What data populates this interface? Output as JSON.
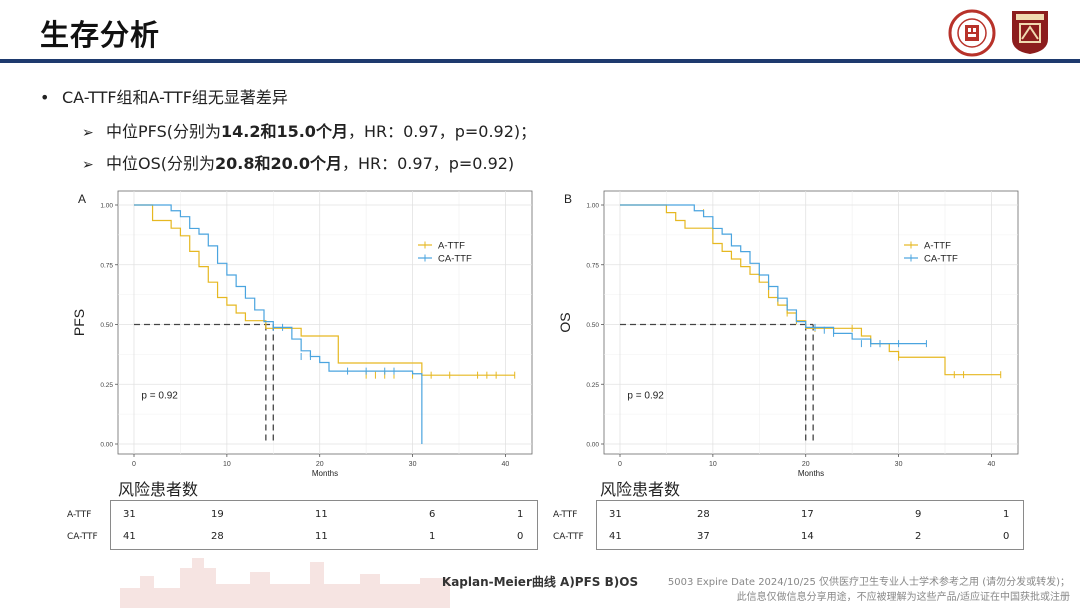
{
  "header": {
    "title": "生存分析",
    "logo_left": "fudan-university-seal",
    "logo_right": "hospital-badge",
    "rule_color": "#1e3a6e"
  },
  "bullets": {
    "main": "CA-TTF组和A-TTF组无显著差异",
    "pfs": {
      "prefix": "中位PFS(分别为",
      "bold": "14.2和15.0个月",
      "suffix": "，HR：0.97，p=0.92)；"
    },
    "os": {
      "prefix": "中位OS(分别为",
      "bold": "20.8和20.0个月",
      "suffix": "，HR：0.97，p=0.92)"
    }
  },
  "chart_data": [
    {
      "type": "line",
      "panel_letter": "A",
      "xlabel": "Months",
      "ylabel": "PFS",
      "xlim": [
        0,
        42
      ],
      "ylim": [
        0,
        1
      ],
      "xticks": [
        "0",
        "10",
        "20",
        "30",
        "40"
      ],
      "yticks": [
        "0.00",
        "0.25",
        "0.50",
        "0.75",
        "1.00"
      ],
      "annotation": "p = 0.92",
      "legend_placement": "top-right",
      "medians": [
        14.2,
        15.0
      ],
      "series": [
        {
          "name": "A-TTF",
          "color": "#e6b821",
          "steps": [
            [
              0,
              1.0
            ],
            [
              2,
              0.935
            ],
            [
              4,
              0.903
            ],
            [
              5,
              0.871
            ],
            [
              6,
              0.806
            ],
            [
              7,
              0.742
            ],
            [
              8,
              0.677
            ],
            [
              9,
              0.613
            ],
            [
              10,
              0.581
            ],
            [
              11,
              0.548
            ],
            [
              12,
              0.516
            ],
            [
              14.2,
              0.484
            ],
            [
              18,
              0.452
            ],
            [
              22,
              0.339
            ],
            [
              31,
              0.288
            ]
          ],
          "censor": [
            [
              25,
              0.288
            ],
            [
              26,
              0.288
            ],
            [
              27,
              0.288
            ],
            [
              28,
              0.288
            ],
            [
              30,
              0.288
            ],
            [
              32,
              0.288
            ],
            [
              34,
              0.288
            ],
            [
              37,
              0.288
            ],
            [
              38,
              0.288
            ],
            [
              39,
              0.288
            ],
            [
              41,
              0.288
            ]
          ]
        },
        {
          "name": "CA-TTF",
          "color": "#4aa4df",
          "steps": [
            [
              0,
              1.0
            ],
            [
              4,
              0.976
            ],
            [
              5,
              0.951
            ],
            [
              6,
              0.902
            ],
            [
              7,
              0.878
            ],
            [
              8,
              0.829
            ],
            [
              9,
              0.756
            ],
            [
              10,
              0.707
            ],
            [
              11,
              0.659
            ],
            [
              12,
              0.61
            ],
            [
              13,
              0.561
            ],
            [
              14,
              0.512
            ],
            [
              15,
              0.488
            ],
            [
              17,
              0.439
            ],
            [
              18,
              0.39
            ],
            [
              19,
              0.366
            ],
            [
              20,
              0.341
            ],
            [
              21,
              0.305
            ],
            [
              30,
              0.294
            ],
            [
              31,
              0.0
            ]
          ],
          "censor": [
            [
              15,
              0.488
            ],
            [
              16,
              0.488
            ],
            [
              18,
              0.366
            ],
            [
              19,
              0.366
            ],
            [
              23,
              0.305
            ],
            [
              25,
              0.305
            ],
            [
              27,
              0.305
            ],
            [
              28,
              0.305
            ]
          ]
        }
      ]
    },
    {
      "type": "line",
      "panel_letter": "B",
      "xlabel": "Months",
      "ylabel": "OS",
      "xlim": [
        0,
        42
      ],
      "ylim": [
        0,
        1
      ],
      "xticks": [
        "0",
        "10",
        "20",
        "30",
        "40"
      ],
      "yticks": [
        "0.00",
        "0.25",
        "0.50",
        "0.75",
        "1.00"
      ],
      "annotation": "p = 0.92",
      "legend_placement": "top-right",
      "medians": [
        20.0,
        20.8
      ],
      "series": [
        {
          "name": "A-TTF",
          "color": "#e6b821",
          "steps": [
            [
              0,
              1.0
            ],
            [
              5,
              0.968
            ],
            [
              6,
              0.935
            ],
            [
              7,
              0.903
            ],
            [
              10,
              0.839
            ],
            [
              11,
              0.806
            ],
            [
              12,
              0.774
            ],
            [
              13,
              0.742
            ],
            [
              14,
              0.71
            ],
            [
              15,
              0.677
            ],
            [
              16,
              0.613
            ],
            [
              17,
              0.581
            ],
            [
              18,
              0.548
            ],
            [
              19,
              0.516
            ],
            [
              20,
              0.484
            ],
            [
              26,
              0.452
            ],
            [
              27,
              0.42
            ],
            [
              29,
              0.387
            ],
            [
              30,
              0.363
            ],
            [
              35,
              0.29
            ]
          ],
          "censor": [
            [
              9,
              0.968
            ],
            [
              18,
              0.548
            ],
            [
              19,
              0.516
            ],
            [
              21,
              0.484
            ],
            [
              25,
              0.484
            ],
            [
              28,
              0.42
            ],
            [
              30,
              0.363
            ],
            [
              36,
              0.29
            ],
            [
              37,
              0.29
            ],
            [
              41,
              0.29
            ]
          ]
        },
        {
          "name": "CA-TTF",
          "color": "#4aa4df",
          "steps": [
            [
              0,
              1.0
            ],
            [
              8,
              0.976
            ],
            [
              9,
              0.951
            ],
            [
              10,
              0.902
            ],
            [
              11,
              0.878
            ],
            [
              12,
              0.829
            ],
            [
              13,
              0.805
            ],
            [
              14,
              0.756
            ],
            [
              15,
              0.707
            ],
            [
              16,
              0.659
            ],
            [
              17,
              0.61
            ],
            [
              18,
              0.561
            ],
            [
              19,
              0.512
            ],
            [
              20,
              0.488
            ],
            [
              23,
              0.463
            ],
            [
              25,
              0.439
            ],
            [
              27,
              0.42
            ]
          ],
          "censor": [
            [
              16,
              0.659
            ],
            [
              17,
              0.61
            ],
            [
              18,
              0.585
            ],
            [
              19,
              0.537
            ],
            [
              21,
              0.488
            ],
            [
              22,
              0.476
            ],
            [
              23,
              0.463
            ],
            [
              26,
              0.42
            ],
            [
              27,
              0.42
            ],
            [
              28,
              0.42
            ],
            [
              30,
              0.42
            ],
            [
              33,
              0.42
            ]
          ]
        }
      ]
    }
  ],
  "risk_tables": [
    {
      "title": "风险患者数",
      "rows": [
        {
          "label": "A-TTF",
          "values": [
            "31",
            "19",
            "11",
            "6",
            "1"
          ]
        },
        {
          "label": "CA-TTF",
          "values": [
            "41",
            "28",
            "11",
            "1",
            "0"
          ]
        }
      ]
    },
    {
      "title": "风险患者数",
      "rows": [
        {
          "label": "A-TTF",
          "values": [
            "31",
            "28",
            "17",
            "9",
            "1"
          ]
        },
        {
          "label": "CA-TTF",
          "values": [
            "41",
            "37",
            "14",
            "2",
            "0"
          ]
        }
      ]
    }
  ],
  "footer": {
    "caption": "Kaplan-Meier曲线 A)PFS B)OS",
    "disclaimer_1": "5003 Expire Date 2024/10/25 仅供医疗卫生专业人士学术参考之用 (请勿分发或转发)；",
    "disclaimer_2": "此信息仅做信息分享用途，不应被理解为这些产品/适应证在中国获批或注册"
  }
}
